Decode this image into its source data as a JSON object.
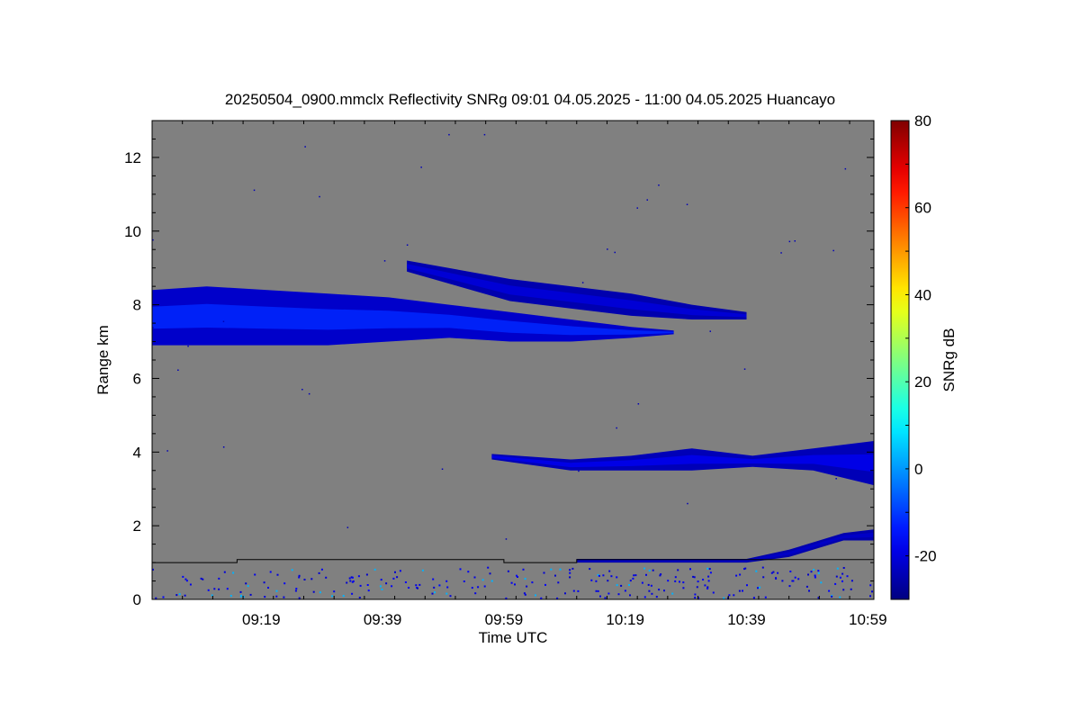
{
  "chart_data": {
    "type": "heatmap",
    "title": "20250504_0900.mmclx Reflectivity SNRg   09:01 04.05.2025 - 11:00 04.05.2025 Huancayo",
    "xlabel": "Time UTC",
    "ylabel": "Range km",
    "colorbar_label": "SNRg dB",
    "xlim": [
      "09:01",
      "11:00"
    ],
    "ylim": [
      0,
      13
    ],
    "x_ticks": [
      "09:19",
      "09:39",
      "09:59",
      "10:19",
      "10:39",
      "10:59"
    ],
    "y_ticks": [
      "0",
      "2",
      "4",
      "6",
      "8",
      "10",
      "12"
    ],
    "colorbar_range": [
      -30,
      80
    ],
    "colorbar_ticks": [
      "-20",
      "0",
      "20",
      "40",
      "60",
      "80"
    ],
    "colormap": "jet",
    "background_color": "#808080",
    "echo_layers": [
      {
        "name": "upper cloud layer",
        "points": [
          {
            "t": "09:01",
            "top": 8.4,
            "base": 6.9
          },
          {
            "t": "09:10",
            "top": 8.5,
            "base": 6.9
          },
          {
            "t": "09:20",
            "top": 8.4,
            "base": 6.9
          },
          {
            "t": "09:30",
            "top": 8.3,
            "base": 6.9
          },
          {
            "t": "09:40",
            "top": 8.2,
            "base": 7.0
          },
          {
            "t": "09:50",
            "top": 8.0,
            "base": 7.1
          },
          {
            "t": "10:00",
            "top": 7.8,
            "base": 7.0
          },
          {
            "t": "10:10",
            "top": 7.6,
            "base": 7.0
          },
          {
            "t": "10:20",
            "top": 7.4,
            "base": 7.1
          },
          {
            "t": "10:27",
            "top": 7.3,
            "base": 7.2
          }
        ],
        "snr_db_core": -12,
        "snr_db_edge": -22
      },
      {
        "name": "upper streaks",
        "points": [
          {
            "t": "09:43",
            "top": 9.2,
            "base": 8.9
          },
          {
            "t": "10:00",
            "top": 8.7,
            "base": 8.1
          },
          {
            "t": "10:20",
            "top": 8.3,
            "base": 7.7
          },
          {
            "t": "10:30",
            "top": 8.0,
            "base": 7.6
          },
          {
            "t": "10:39",
            "top": 7.8,
            "base": 7.6
          }
        ],
        "snr_db_core": -20,
        "snr_db_edge": -25
      },
      {
        "name": "mid layer",
        "points": [
          {
            "t": "09:57",
            "top": 3.95,
            "base": 3.8
          },
          {
            "t": "10:10",
            "top": 3.8,
            "base": 3.5
          },
          {
            "t": "10:20",
            "top": 3.9,
            "base": 3.5
          },
          {
            "t": "10:30",
            "top": 4.1,
            "base": 3.5
          },
          {
            "t": "10:40",
            "top": 3.9,
            "base": 3.6
          },
          {
            "t": "10:50",
            "top": 4.1,
            "base": 3.5
          },
          {
            "t": "11:00",
            "top": 4.3,
            "base": 3.1
          }
        ],
        "snr_db_core": -18,
        "snr_db_edge": -24
      },
      {
        "name": "boundary layer echo",
        "points": [
          {
            "t": "10:11",
            "top": 1.1,
            "base": 1.0
          },
          {
            "t": "10:39",
            "top": 1.1,
            "base": 1.0
          },
          {
            "t": "10:46",
            "top": 1.35,
            "base": 1.15
          },
          {
            "t": "10:55",
            "top": 1.8,
            "base": 1.6
          },
          {
            "t": "11:00",
            "top": 1.9,
            "base": 1.6
          }
        ],
        "snr_db_core": -22,
        "snr_db_edge": -25
      }
    ],
    "overlay_line": [
      {
        "t": "09:01",
        "km": 1.0
      },
      {
        "t": "09:15",
        "km": 1.0
      },
      {
        "t": "09:15",
        "km": 1.08
      },
      {
        "t": "09:59",
        "km": 1.08
      },
      {
        "t": "09:59",
        "km": 1.0
      },
      {
        "t": "10:11",
        "km": 1.0
      },
      {
        "t": "10:11",
        "km": 1.08
      },
      {
        "t": "11:00",
        "km": 1.08
      }
    ],
    "grid": false,
    "legend": "colorbar right"
  }
}
